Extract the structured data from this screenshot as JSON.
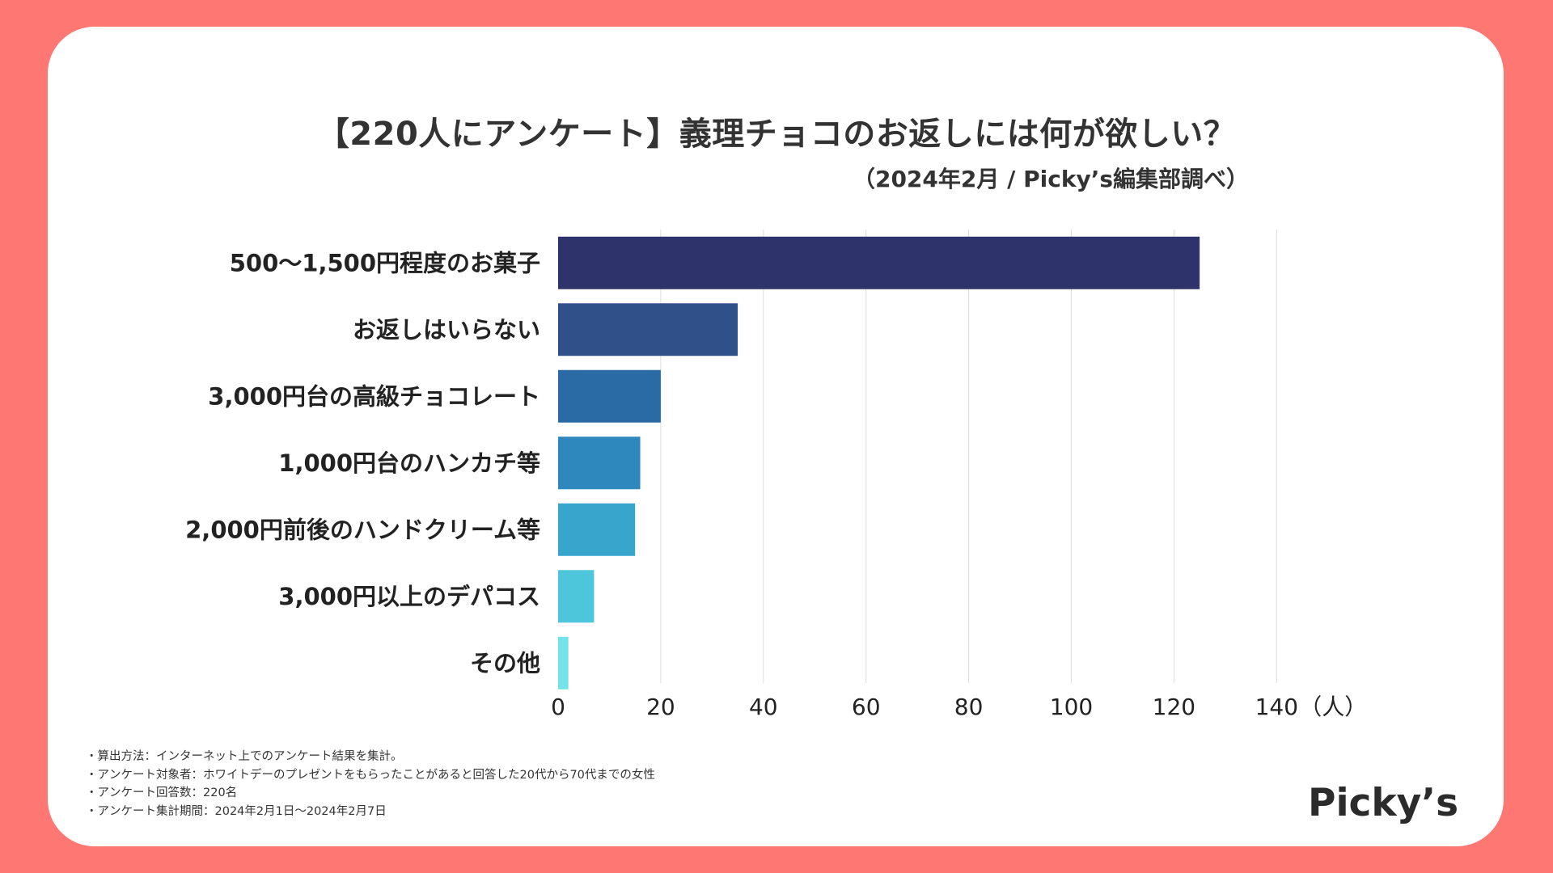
{
  "title": "【220人にアンケート】義理チョコのお返しには何が欲しい？",
  "subtitle": "（2024年2月 / Picky’s編集部調べ）",
  "chart_data": {
    "type": "bar",
    "orientation": "horizontal",
    "categories": [
      "500〜1,500円程度のお菓子",
      "お返しはいらない",
      "3,000円台の高級チョコレート",
      "1,000円台のハンカチ等",
      "2,000円前後のハンドクリーム等",
      "3,000円以上のデパコス",
      "その他"
    ],
    "values": [
      125,
      35,
      20,
      16,
      15,
      7,
      2
    ],
    "colors": [
      "#2f336b",
      "#30508a",
      "#2b6ba5",
      "#2e88bd",
      "#38a5cd",
      "#4dc6dc",
      "#72e3e6"
    ],
    "xticks": [
      "0",
      "20",
      "40",
      "60",
      "80",
      "100",
      "120",
      "140"
    ],
    "xunit": "（人）",
    "xlim": [
      0,
      140
    ],
    "grid": true
  },
  "notes": [
    "・算出方法：インターネット上でのアンケート結果を集計。",
    "・アンケート対象者：ホワイトデーのプレゼントをもらったことがあると回答した20代から70代までの女性",
    "・アンケート回答数：220名",
    "・アンケート集計期間：2024年2月1日〜2024年2月7日"
  ],
  "logo": "Picky’s"
}
